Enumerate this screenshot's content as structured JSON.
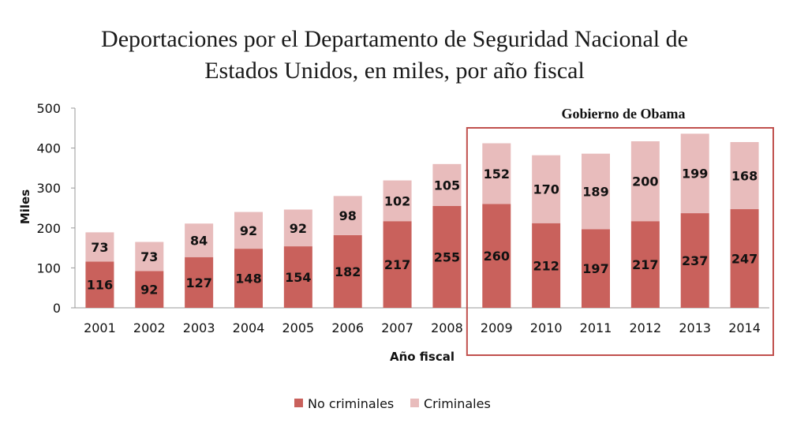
{
  "chart_data": {
    "type": "bar",
    "stacked": true,
    "title_line1": "Deportaciones por el Departamento de Seguridad Nacional de",
    "title_line2": "Estados Unidos, en miles, por año fiscal",
    "xlabel": "Año fiscal",
    "ylabel": "Miles",
    "ylim": [
      0,
      500
    ],
    "yticks": [
      0,
      100,
      200,
      300,
      400,
      500
    ],
    "categories": [
      "2001",
      "2002",
      "2003",
      "2004",
      "2005",
      "2006",
      "2007",
      "2008",
      "2009",
      "2010",
      "2011",
      "2012",
      "2013",
      "2014"
    ],
    "series": [
      {
        "name": "No criminales",
        "color": "#c9615c",
        "values": [
          116,
          92,
          127,
          148,
          154,
          182,
          217,
          255,
          260,
          212,
          197,
          217,
          237,
          247
        ]
      },
      {
        "name": "Criminales",
        "color": "#e8bcbc",
        "values": [
          73,
          73,
          84,
          92,
          92,
          98,
          102,
          105,
          152,
          170,
          189,
          200,
          199,
          168
        ]
      }
    ],
    "annotation": {
      "text": "Gobierno de Obama",
      "from": "2009",
      "to": "2014",
      "box_color": "#c0504d"
    },
    "legend_position": "bottom",
    "grid": false
  }
}
